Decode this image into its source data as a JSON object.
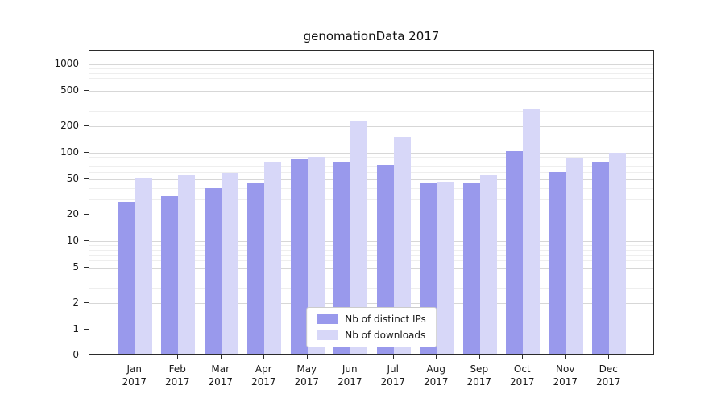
{
  "chart_data": {
    "type": "bar",
    "title": "genomationData 2017",
    "scale": "log",
    "grid": true,
    "legend_position": "bottom-center",
    "year_label": "2017",
    "categories": [
      "Jan",
      "Feb",
      "Mar",
      "Apr",
      "May",
      "Jun",
      "Jul",
      "Aug",
      "Sep",
      "Oct",
      "Nov",
      "Dec"
    ],
    "y_ticks": [
      1000,
      500,
      200,
      100,
      50,
      20,
      10,
      5,
      2,
      1,
      0
    ],
    "ylim": [
      0,
      1000
    ],
    "series": [
      {
        "key": "distinct-ips",
        "name": "Nb of distinct IPs",
        "color": "#9999ec",
        "values": [
          28,
          32,
          40,
          45,
          84,
          80,
          73,
          45,
          46,
          105,
          60,
          80
        ]
      },
      {
        "key": "downloads",
        "name": "Nb of downloads",
        "color": "#d7d7f8",
        "values": [
          51,
          56,
          59,
          78,
          90,
          230,
          150,
          47,
          56,
          310,
          88,
          100
        ]
      }
    ]
  }
}
